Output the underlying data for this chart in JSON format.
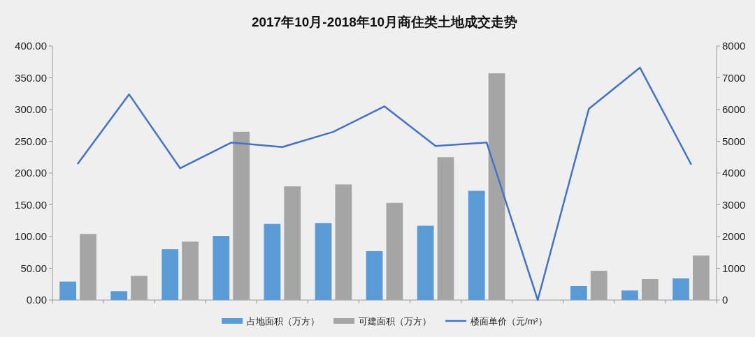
{
  "chart_data": {
    "type": "bar",
    "title": "2017年10月-2018年10月商住类土地成交走势",
    "categories": [
      null,
      null,
      null,
      null,
      null,
      null,
      null,
      null,
      null,
      null,
      null,
      null,
      null
    ],
    "series": [
      {
        "name": "占地面积（万方）",
        "color": "#5b9bd5",
        "values": [
          29,
          14,
          80,
          101,
          120,
          121,
          77,
          117,
          172,
          0,
          22,
          15,
          34
        ]
      },
      {
        "name": "可建面积（万方）",
        "color": "#a5a5a5",
        "values": [
          104,
          38,
          92,
          265,
          179,
          182,
          153,
          225,
          357,
          0,
          46,
          33,
          70
        ]
      },
      {
        "name": "楼面单价（元/m²）",
        "type": "line",
        "axis": "y2",
        "color": "#4472c4",
        "values": [
          4300,
          6480,
          4150,
          4960,
          4820,
          5300,
          6100,
          4850,
          4960,
          0,
          6020,
          7320,
          4280
        ]
      }
    ],
    "ylim": [
      0,
      400
    ],
    "yticks": [
      {
        "value": 0,
        "label": "0.00"
      },
      {
        "value": 50,
        "label": "50.00"
      },
      {
        "value": 100,
        "label": "100.00"
      },
      {
        "value": 150,
        "label": "150.00"
      },
      {
        "value": 200,
        "label": "200.00"
      },
      {
        "value": 250,
        "label": "250.00"
      },
      {
        "value": 300,
        "label": "300.00"
      },
      {
        "value": 350,
        "label": "350.00"
      },
      {
        "value": 400,
        "label": "400.00"
      }
    ],
    "y2lim": [
      0,
      8000
    ],
    "y2ticks": [
      0,
      1000,
      2000,
      3000,
      4000,
      5000,
      6000,
      7000,
      8000
    ],
    "legend": "bottom"
  }
}
